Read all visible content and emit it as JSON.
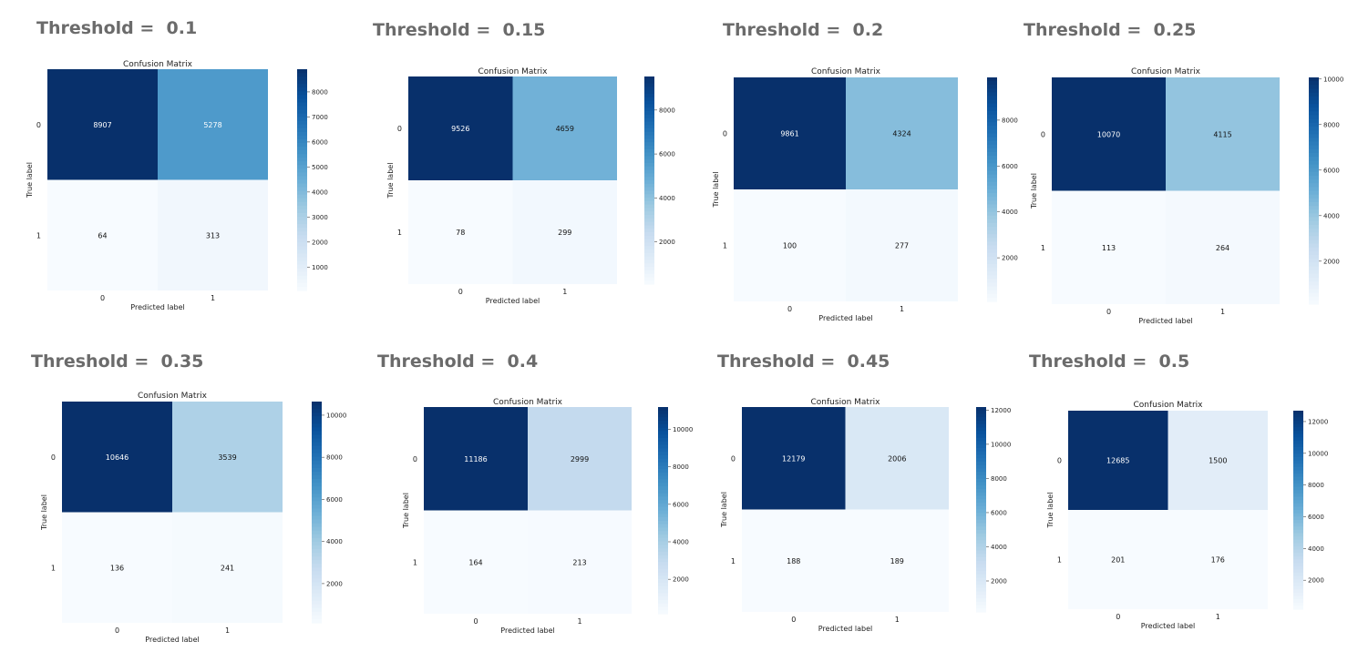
{
  "threshold_prefix": "Threshold =  ",
  "chart_data": [
    {
      "type": "heatmap",
      "panel_title": "Threshold =  0.1",
      "threshold": "0.1",
      "title": "Confusion Matrix",
      "xlabel": "Predicted label",
      "ylabel": "True label",
      "x_ticks": [
        "0",
        "1"
      ],
      "y_ticks": [
        "0",
        "1"
      ],
      "values": [
        [
          8907,
          5278
        ],
        [
          64,
          313
        ]
      ],
      "colorbar_ticks": [
        1000,
        2000,
        3000,
        4000,
        5000,
        6000,
        7000,
        8000
      ],
      "colormap": "Blues"
    },
    {
      "type": "heatmap",
      "panel_title": "Threshold =  0.15",
      "threshold": "0.15",
      "title": "Confusion Matrix",
      "xlabel": "Predicted label",
      "ylabel": "True label",
      "x_ticks": [
        "0",
        "1"
      ],
      "y_ticks": [
        "0",
        "1"
      ],
      "values": [
        [
          9526,
          4659
        ],
        [
          78,
          299
        ]
      ],
      "colorbar_ticks": [
        2000,
        4000,
        6000,
        8000
      ],
      "colormap": "Blues"
    },
    {
      "type": "heatmap",
      "panel_title": "Threshold =  0.2",
      "threshold": "0.2",
      "title": "Confusion Matrix",
      "xlabel": "Predicted label",
      "ylabel": "True label",
      "x_ticks": [
        "0",
        "1"
      ],
      "y_ticks": [
        "0",
        "1"
      ],
      "values": [
        [
          9861,
          4324
        ],
        [
          100,
          277
        ]
      ],
      "colorbar_ticks": [
        2000,
        4000,
        6000,
        8000
      ],
      "colormap": "Blues"
    },
    {
      "type": "heatmap",
      "panel_title": "Threshold =  0.25",
      "threshold": "0.25",
      "title": "Confusion Matrix",
      "xlabel": "Predicted label",
      "ylabel": "True label",
      "x_ticks": [
        "0",
        "1"
      ],
      "y_ticks": [
        "0",
        "1"
      ],
      "values": [
        [
          10070,
          4115
        ],
        [
          113,
          264
        ]
      ],
      "colorbar_ticks": [
        2000,
        4000,
        6000,
        8000,
        10000
      ],
      "colormap": "Blues"
    },
    {
      "type": "heatmap",
      "panel_title": "Threshold =  0.35",
      "threshold": "0.35",
      "title": "Confusion Matrix",
      "xlabel": "Predicted label",
      "ylabel": "True label",
      "x_ticks": [
        "0",
        "1"
      ],
      "y_ticks": [
        "0",
        "1"
      ],
      "values": [
        [
          10646,
          3539
        ],
        [
          136,
          241
        ]
      ],
      "colorbar_ticks": [
        2000,
        4000,
        6000,
        8000,
        10000
      ],
      "colormap": "Blues"
    },
    {
      "type": "heatmap",
      "panel_title": "Threshold =  0.4",
      "threshold": "0.4",
      "title": "Confusion Matrix",
      "xlabel": "Predicted label",
      "ylabel": "True label",
      "x_ticks": [
        "0",
        "1"
      ],
      "y_ticks": [
        "0",
        "1"
      ],
      "values": [
        [
          11186,
          2999
        ],
        [
          164,
          213
        ]
      ],
      "colorbar_ticks": [
        2000,
        4000,
        6000,
        8000,
        10000
      ],
      "colormap": "Blues"
    },
    {
      "type": "heatmap",
      "panel_title": "Threshold =  0.45",
      "threshold": "0.45",
      "title": "Confusion Matrix",
      "xlabel": "Predicted label",
      "ylabel": "True label",
      "x_ticks": [
        "0",
        "1"
      ],
      "y_ticks": [
        "0",
        "1"
      ],
      "values": [
        [
          12179,
          2006
        ],
        [
          188,
          189
        ]
      ],
      "colorbar_ticks": [
        2000,
        4000,
        6000,
        8000,
        10000,
        12000
      ],
      "colormap": "Blues"
    },
    {
      "type": "heatmap",
      "panel_title": "Threshold =  0.5",
      "threshold": "0.5",
      "title": "Confusion Matrix",
      "xlabel": "Predicted label",
      "ylabel": "True label",
      "x_ticks": [
        "0",
        "1"
      ],
      "y_ticks": [
        "0",
        "1"
      ],
      "values": [
        [
          12685,
          1500
        ],
        [
          201,
          176
        ]
      ],
      "colorbar_ticks": [
        2000,
        4000,
        6000,
        8000,
        10000,
        12000
      ],
      "colormap": "Blues"
    }
  ]
}
